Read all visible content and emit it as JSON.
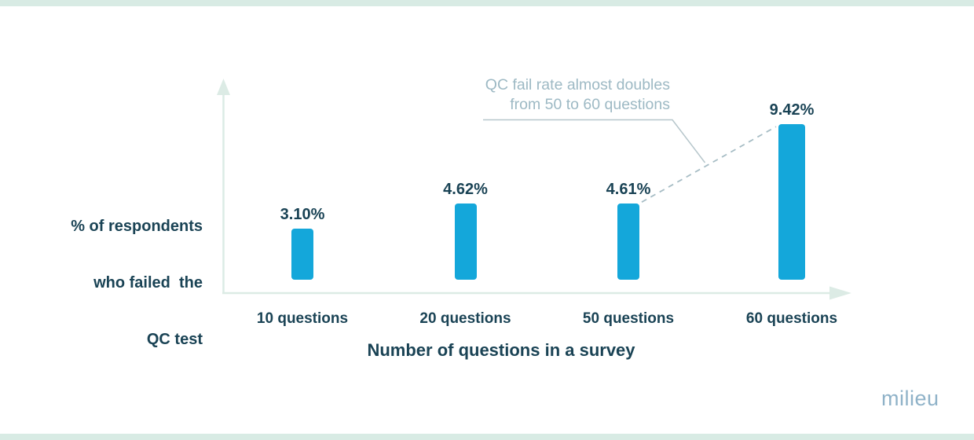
{
  "page": {
    "background": "#ffffff"
  },
  "colors": {
    "bar": "#14a7da",
    "dark_text": "#1a4355",
    "axis": "#dcebe5",
    "annotation_text": "#9db9c4",
    "annotation_line": "#b6c6cb",
    "dashed_line": "#a7bdc5",
    "frame": "#d8ebe4",
    "logo": "#8fb2c8"
  },
  "branding": {
    "logo_text": "milieu"
  },
  "chart_data": {
    "type": "bar",
    "title": "",
    "categories": [
      "10 questions",
      "20 questions",
      "50 questions",
      "60 questions"
    ],
    "values": [
      3.1,
      4.62,
      4.61,
      9.42
    ],
    "value_labels": [
      "3.10%",
      "4.62%",
      "4.61%",
      "9.42%"
    ],
    "xlabel": "Number of questions in a survey",
    "ylabel_lines": [
      "% of respondents",
      "who failed  the",
      "QC test"
    ],
    "ylim": [
      0,
      10
    ],
    "grid": false,
    "legend_position": "none",
    "bar_color": "#14a7da",
    "annotation": {
      "text_lines": [
        "QC fail rate almost doubles",
        "from 50 to 60 questions"
      ],
      "from_category": "50 questions",
      "to_category": "60 questions",
      "connector_style": "dashed"
    }
  }
}
